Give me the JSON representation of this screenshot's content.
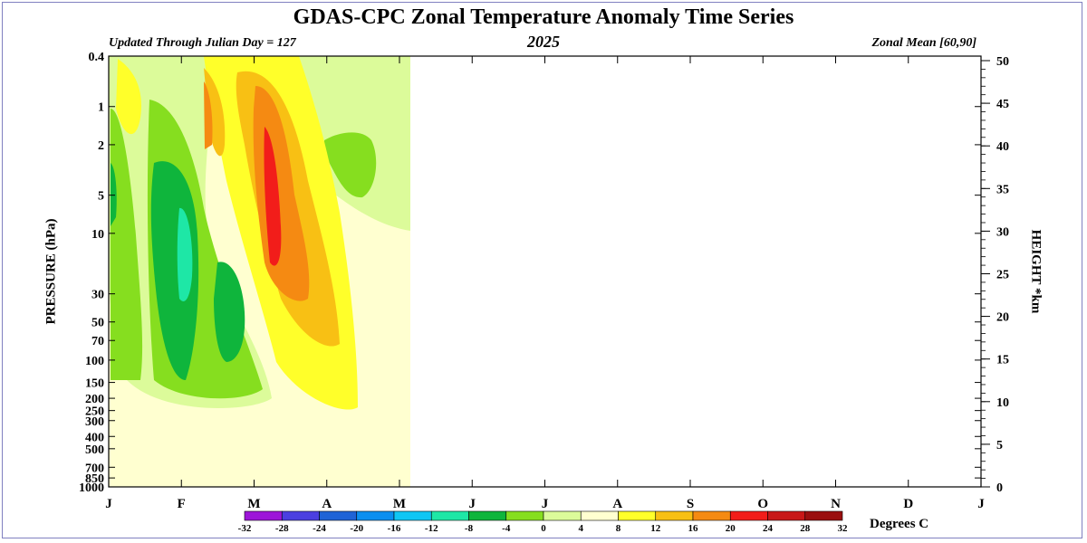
{
  "page": {
    "title": "GDAS-CPC Zonal Temperature Anomaly Time Series",
    "subtitle_left": "Updated Through Julian Day = 127",
    "subtitle_center": "2025",
    "subtitle_right": "Zonal Mean [60,90]",
    "colorbar_label": "Degrees C"
  },
  "chart_data": {
    "type": "heatmap",
    "title": "GDAS-CPC Zonal Temperature Anomaly Time Series",
    "xlabel": "",
    "ylabel_left": "PRESSURE (hPa)",
    "ylabel_right": "HEIGHT *km",
    "x_ticks": [
      "J",
      "F",
      "M",
      "A",
      "M",
      "J",
      "J",
      "A",
      "S",
      "O",
      "N",
      "D",
      "J"
    ],
    "pressure_ticks": [
      "0.4",
      "1",
      "2",
      "5",
      "10",
      "30",
      "50",
      "70",
      "100",
      "150",
      "200",
      "250",
      "300",
      "400",
      "500",
      "700",
      "850",
      "1000"
    ],
    "pressure_values": [
      0.4,
      1,
      2,
      5,
      10,
      30,
      50,
      70,
      100,
      150,
      200,
      250,
      300,
      400,
      500,
      700,
      850,
      1000
    ],
    "height_ticks": [
      "50",
      "45",
      "40",
      "35",
      "30",
      "25",
      "20",
      "15",
      "10",
      "5",
      "0"
    ],
    "height_range_km": [
      0,
      50
    ],
    "data_end_julian_day": 127,
    "colorbar": {
      "levels": [
        "-32",
        "-28",
        "-24",
        "-20",
        "-16",
        "-12",
        "-8",
        "-4",
        "0",
        "4",
        "8",
        "12",
        "16",
        "20",
        "24",
        "28",
        "32"
      ],
      "colors": [
        "#9d16d8",
        "#4b3fe0",
        "#1f63d6",
        "#0b8ff0",
        "#10c6f4",
        "#1ee7a6",
        "#0fb53c",
        "#86de1f",
        "#dcfb9a",
        "#ffffd0",
        "#ffff2a",
        "#f8c014",
        "#f58a12",
        "#f21d1a",
        "#c81818",
        "#9a0f0f",
        "#8a7b35"
      ]
    },
    "anomaly_regions": [
      {
        "level": "0",
        "color": "#ffffd0"
      },
      {
        "level": "-4",
        "color": "#dcfb9a"
      },
      {
        "level": "-8",
        "color": "#86de1f"
      },
      {
        "level": "-12",
        "color": "#0fb53c"
      },
      {
        "level": "-16",
        "color": "#1ee7a6"
      },
      {
        "level": "4",
        "color": "#ffff2a"
      },
      {
        "level": "8",
        "color": "#f8c014"
      },
      {
        "level": "12",
        "color": "#f58a12"
      },
      {
        "level": "16",
        "color": "#f21d1a"
      }
    ]
  }
}
